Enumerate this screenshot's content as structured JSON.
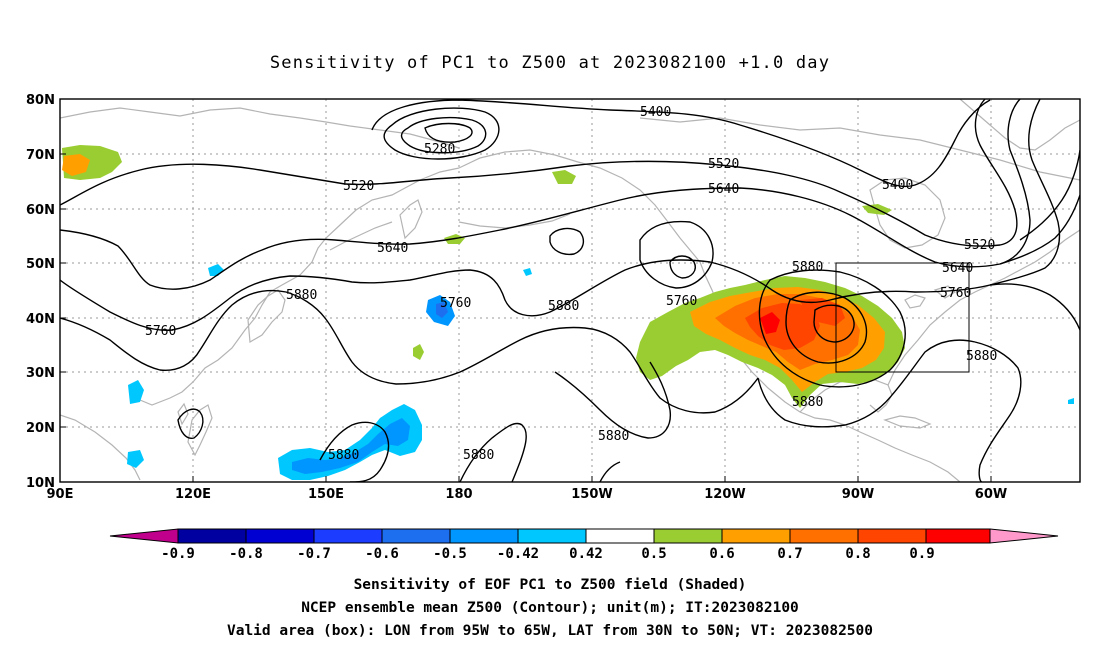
{
  "title": "Sensitivity of PC1 to Z500 at 2023082100 +1.0 day",
  "map": {
    "lat_labels": [
      "80N",
      "70N",
      "60N",
      "50N",
      "40N",
      "30N",
      "20N",
      "10N"
    ],
    "lon_labels": [
      "90E",
      "120E",
      "150E",
      "180",
      "150W",
      "120W",
      "90W",
      "60W"
    ],
    "contour_labels": [
      "5400",
      "5280",
      "5520",
      "5640",
      "5400",
      "5520",
      "5640",
      "5760",
      "5880",
      "5880",
      "5760",
      "5880",
      "5760",
      "5640",
      "5520",
      "5760",
      "5880",
      "5880",
      "5880",
      "5880",
      "5880"
    ],
    "contour_levels_m": [
      5280,
      5400,
      5520,
      5640,
      5760,
      5880
    ],
    "valid_box": {
      "lon_from": "95W",
      "lon_to": "65W",
      "lat_from": "30N",
      "lat_to": "50N"
    }
  },
  "colorbar": {
    "tick_labels": [
      "-0.9",
      "-0.8",
      "-0.7",
      "-0.6",
      "-0.5",
      "-0.42",
      "0.42",
      "0.5",
      "0.6",
      "0.7",
      "0.8",
      "0.9"
    ],
    "colors": [
      "#c0008c",
      "#0000a0",
      "#0000d2",
      "#1c3cff",
      "#1e6ef0",
      "#0096ff",
      "#00c8ff",
      "#ffffff",
      "#9acd32",
      "#ffa000",
      "#ff7000",
      "#ff4500",
      "#ff0000",
      "#ff99cc"
    ]
  },
  "caption": {
    "line1": "Sensitivity of EOF PC1 to Z500 field (Shaded)",
    "line2": "NCEP ensemble mean Z500 (Contour); unit(m); IT:2023082100",
    "line3": "Valid area (box): LON from 95W to 65W, LAT from 30N to 50N; VT: 2023082500"
  }
}
